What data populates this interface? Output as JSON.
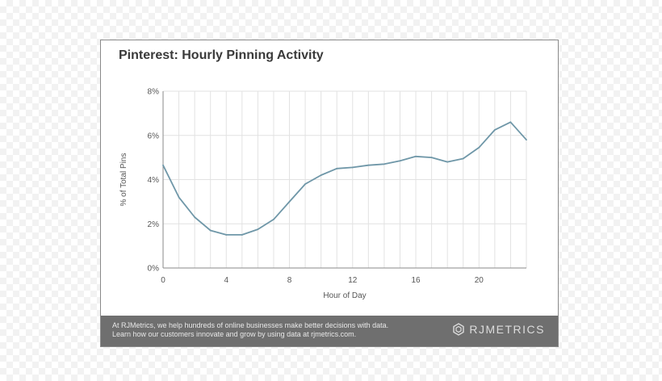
{
  "title": "Pinterest: Hourly Pinning Activity",
  "footer": {
    "line1": "At RJMetrics, we help hundreds of online businesses make better decisions with data.",
    "line2": "Learn how our customers innovate and grow by using data at rjmetrics.com.",
    "brand": "RJMETRICS",
    "brand_icon": "rjmetrics-logo-icon"
  },
  "colors": {
    "line": "#6f97a8",
    "grid": "#e2e2e2",
    "axis": "#8a8a8a",
    "footer_bg": "#6f6f6f"
  },
  "chart_data": {
    "type": "line",
    "title": "Pinterest: Hourly Pinning Activity",
    "xlabel": "Hour of Day",
    "ylabel": "% of Total Pins",
    "xlim": [
      0,
      23
    ],
    "ylim": [
      0,
      8
    ],
    "xticks": [
      0,
      4,
      8,
      12,
      16,
      20
    ],
    "xtick_labels": [
      "0",
      "4",
      "8",
      "12",
      "16",
      "20"
    ],
    "yticks": [
      0,
      2,
      4,
      6,
      8
    ],
    "ytick_labels": [
      "0%",
      "2%",
      "4%",
      "6%",
      "8%"
    ],
    "grid": true,
    "series": [
      {
        "x": [
          0,
          1,
          2,
          3,
          4,
          5,
          6,
          7,
          8,
          9,
          10,
          11,
          12,
          13,
          14,
          15,
          16,
          17,
          18,
          19,
          20,
          21,
          22,
          23
        ],
        "values": [
          4.65,
          3.2,
          2.3,
          1.7,
          1.5,
          1.5,
          1.75,
          2.2,
          3.0,
          3.8,
          4.2,
          4.5,
          4.55,
          4.65,
          4.7,
          4.85,
          5.05,
          5.0,
          4.8,
          4.95,
          5.45,
          6.25,
          6.6,
          5.8
        ]
      }
    ]
  }
}
